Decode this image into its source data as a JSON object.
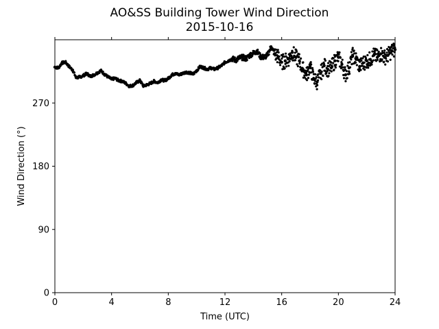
{
  "chart_data": {
    "type": "scatter",
    "title": "AO&SS Building Tower Wind Direction",
    "subtitle": "2015-10-16",
    "xlabel": "Time (UTC)",
    "ylabel": "Wind Direction (°)",
    "xlim": [
      0,
      24
    ],
    "ylim": [
      0,
      360
    ],
    "xticks": [
      0,
      4,
      8,
      12,
      16,
      20,
      24
    ],
    "yticks": [
      0,
      90,
      180,
      270
    ],
    "grid": false,
    "legend": "none",
    "marker_color": "#000000",
    "series": [
      {
        "x": [
          0.0,
          0.25,
          0.5,
          0.75,
          1.0,
          1.25,
          1.5,
          1.75,
          2.0,
          2.25,
          2.5,
          2.75,
          3.0,
          3.25,
          3.5,
          3.75,
          4.0,
          4.25,
          4.5,
          4.75,
          5.0,
          5.25,
          5.5,
          5.75,
          6.0,
          6.25,
          6.5,
          6.75,
          7.0,
          7.25,
          7.5,
          7.75,
          8.0,
          8.25,
          8.5,
          8.75,
          9.0,
          9.25,
          9.5,
          9.75,
          10.0,
          10.25,
          10.5,
          10.75,
          11.0,
          11.25,
          11.5,
          11.75,
          12.0,
          12.25,
          12.5,
          12.75,
          13.0,
          13.25,
          13.5,
          13.75,
          14.0,
          14.25,
          14.5,
          14.75,
          15.0,
          15.25,
          15.5,
          15.75,
          16.0,
          16.25,
          16.5,
          16.75,
          17.0,
          17.25,
          17.5,
          17.75,
          18.0,
          18.25,
          18.5,
          18.75,
          19.0,
          19.25,
          19.5,
          19.75,
          20.0,
          20.25,
          20.5,
          20.75,
          21.0,
          21.25,
          21.5,
          21.75,
          22.0,
          22.25,
          22.5,
          22.75,
          23.0,
          23.25,
          23.5,
          23.75,
          24.0
        ],
        "y": [
          321,
          320,
          327,
          328,
          322,
          317,
          306,
          307,
          309,
          312,
          308,
          310,
          313,
          316,
          311,
          307,
          304,
          305,
          302,
          301,
          298,
          294,
          295,
          299,
          302,
          294,
          296,
          298,
          301,
          299,
          303,
          302,
          305,
          310,
          312,
          310,
          312,
          314,
          313,
          311,
          316,
          322,
          320,
          318,
          320,
          318,
          320,
          323,
          328,
          330,
          333,
          331,
          334,
          335,
          333,
          338,
          341,
          344,
          336,
          335,
          338,
          350,
          340,
          336,
          328,
          330,
          333,
          342,
          335,
          330,
          318,
          310,
          322,
          305,
          300,
          312,
          323,
          318,
          320,
          330,
          335,
          325,
          310,
          320,
          338,
          332,
          322,
          327,
          330,
          332,
          338,
          335,
          340,
          335,
          338,
          344,
          346
        ]
      }
    ]
  }
}
